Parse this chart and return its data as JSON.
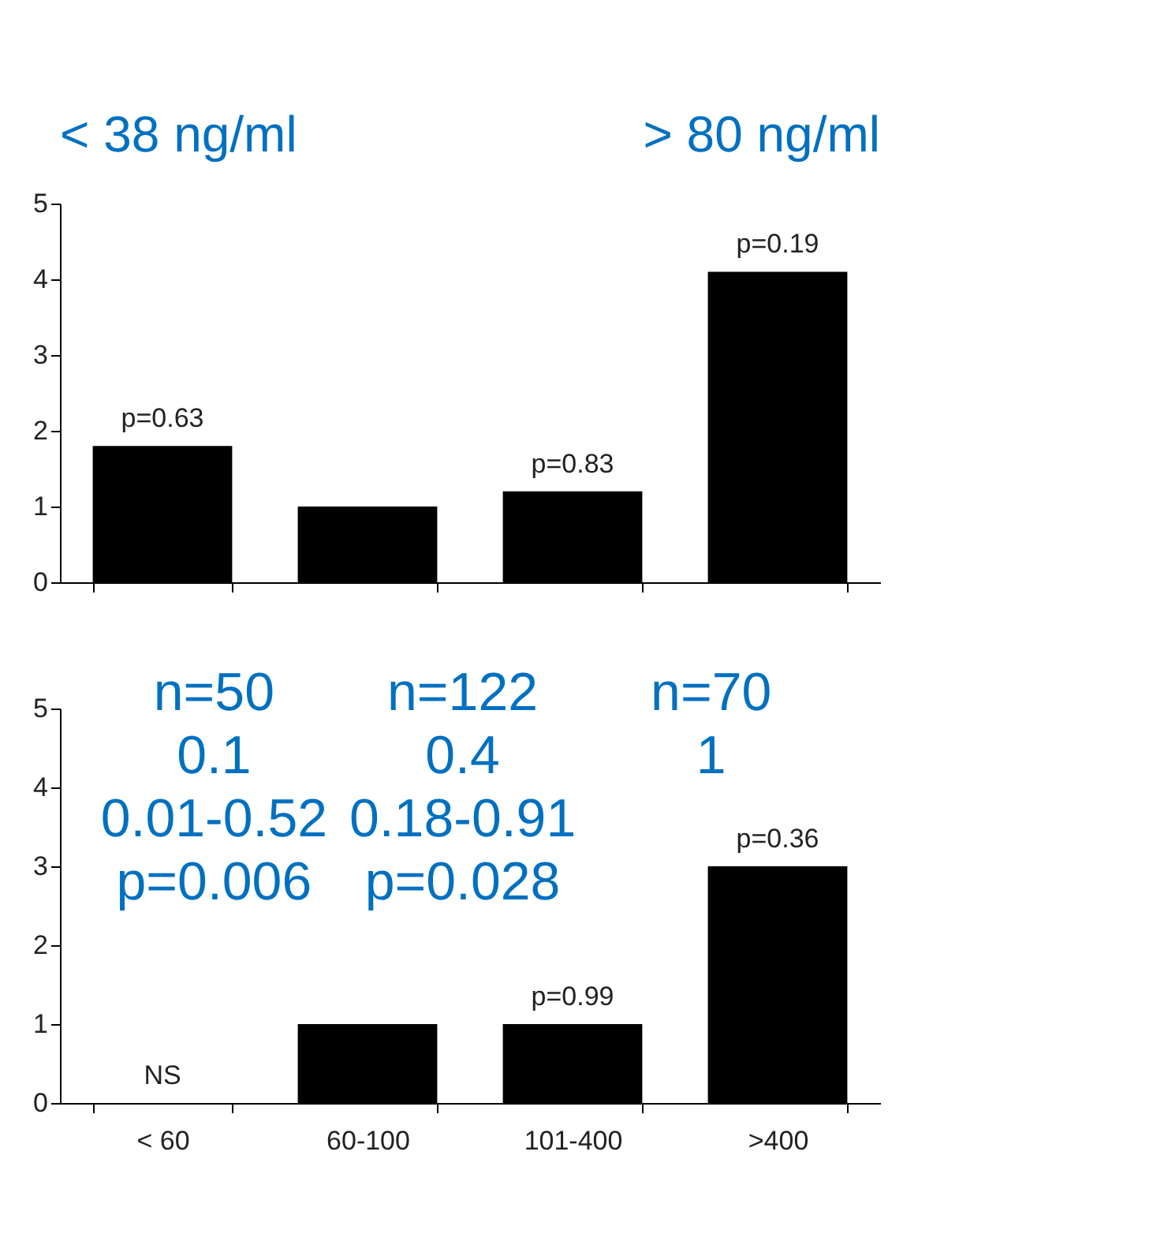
{
  "chart_data": [
    {
      "type": "bar",
      "categories": [
        "< 60",
        "60-100",
        "101-400",
        ">400"
      ],
      "values": [
        1.8,
        1.0,
        1.2,
        4.1
      ],
      "color": "#000000",
      "ylim": [
        0,
        5
      ],
      "yticks": [
        0,
        1,
        2,
        3,
        4,
        5
      ],
      "tick_labels": "y",
      "annotations": [
        "< 38 ng/ml",
        "> 80 ng/ml",
        {
          "text": "p=0.63",
          "x": "< 60",
          "y": 1.8
        },
        {
          "text": "p=0.83",
          "x": "101-400",
          "y": 1.2
        },
        {
          "text": "p=0.19",
          "x": ">400",
          "y": 4.1
        }
      ]
    },
    {
      "type": "bar",
      "categories": [
        "< 60",
        "60-100",
        "101-400",
        ">400"
      ],
      "values": [
        null,
        1,
        1,
        3
      ],
      "value_labels": [
        "NS",
        null,
        null,
        null
      ],
      "color": "#000000",
      "ylim": [
        0,
        5
      ],
      "yticks": [
        0,
        1,
        2,
        3,
        4,
        5
      ],
      "annotations": [
        "n=50\n0.1\n0.01-0.52\np=0.006",
        "n=122\n0.4\n0.18-0.91\np=0.028",
        "n=70\n1",
        {
          "text": "p=0.99",
          "x": "101-400",
          "y": 1
        },
        {
          "text": "p=0.36",
          "x": ">400",
          "y": 3
        }
      ]
    }
  ]
}
